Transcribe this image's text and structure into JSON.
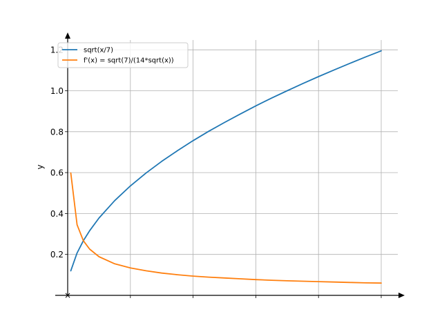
{
  "chart_data": {
    "type": "line",
    "title": "",
    "xlabel": "",
    "ylabel": "y",
    "xlim": [
      0.0,
      10.5
    ],
    "ylim": [
      0.0,
      1.25
    ],
    "x_ticks": [
      2,
      4,
      6,
      8,
      10
    ],
    "x_tick_labels": [
      "",
      "",
      "",
      "",
      ""
    ],
    "y_ticks": [
      0.2,
      0.4,
      0.6,
      0.8,
      1.0,
      1.2
    ],
    "y_tick_labels": [
      "0.2",
      "0.4",
      "0.6",
      "0.8",
      "1.0",
      "1.2"
    ],
    "origin_marker": "×",
    "grid": true,
    "legend_position": "top-left",
    "series": [
      {
        "name": "sqrt(x/7)",
        "color": "#1f77b4",
        "x": [
          0.1,
          0.3,
          0.5,
          0.7,
          1.0,
          1.5,
          2.0,
          2.5,
          3.0,
          3.5,
          4.0,
          4.5,
          5.0,
          5.5,
          6.0,
          6.5,
          7.0,
          7.5,
          8.0,
          8.5,
          9.0,
          9.5,
          10.0
        ],
        "y": [
          0.12,
          0.207,
          0.267,
          0.316,
          0.378,
          0.463,
          0.535,
          0.598,
          0.655,
          0.707,
          0.756,
          0.802,
          0.845,
          0.886,
          0.926,
          0.964,
          1.0,
          1.035,
          1.069,
          1.102,
          1.134,
          1.165,
          1.195
        ]
      },
      {
        "name": "f'(x) = sqrt(7)/(14*sqrt(x))",
        "color": "#ff7f0e",
        "x": [
          0.1,
          0.3,
          0.5,
          0.7,
          1.0,
          1.5,
          2.0,
          2.5,
          3.0,
          3.5,
          4.0,
          4.5,
          5.0,
          5.5,
          6.0,
          6.5,
          7.0,
          7.5,
          8.0,
          8.5,
          9.0,
          9.5,
          10.0
        ],
        "y": [
          0.598,
          0.345,
          0.267,
          0.226,
          0.189,
          0.154,
          0.134,
          0.12,
          0.109,
          0.101,
          0.094,
          0.089,
          0.085,
          0.081,
          0.077,
          0.074,
          0.071,
          0.069,
          0.067,
          0.065,
          0.063,
          0.061,
          0.06
        ]
      }
    ]
  }
}
